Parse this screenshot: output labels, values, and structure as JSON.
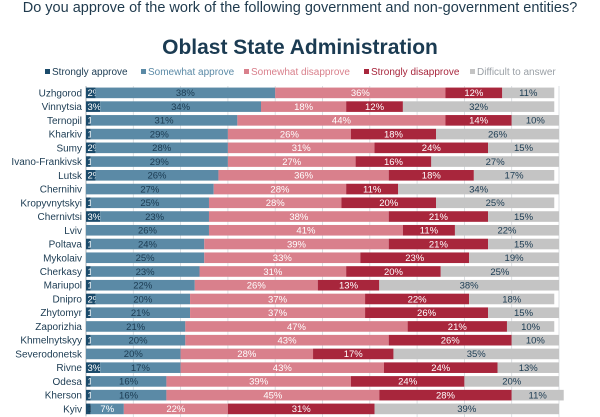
{
  "header": {
    "question": "Do you approve of the work of the following government and non-government entities?",
    "subtitle": "Oblast State Administration"
  },
  "colors": {
    "strongly_approve": "#1b4b6b",
    "somewhat_approve": "#5b8aa6",
    "somewhat_disapprove": "#d9808c",
    "strongly_disapprove": "#a8263c",
    "difficult": "#c4c4c4"
  },
  "chart_data": {
    "type": "bar",
    "orientation": "horizontal",
    "stacked": true,
    "title": "Oblast State Administration",
    "xlim": [
      0,
      100
    ],
    "x_ticks": [
      "0%",
      "10%",
      "20%",
      "30%",
      "40%",
      "50%",
      "60%",
      "70%",
      "80%",
      "90%",
      "100%"
    ],
    "legend_position": "top",
    "categories": [
      "Uzhgorod",
      "Vinnytsia",
      "Ternopil",
      "Kharkiv",
      "Sumy",
      "Ivano-Frankivsk",
      "Lutsk",
      "Chernihiv",
      "Kropyvnytskyi",
      "Chernivtsi",
      "Lviv",
      "Poltava",
      "Mykolaiv",
      "Cherkasy",
      "Mariupol",
      "Dnipro",
      "Zhytomyr",
      "Zaporizhia",
      "Khmelnytskyy",
      "Severodonetsk",
      "Rivne",
      "Odesa",
      "Kherson",
      "Kyiv"
    ],
    "series": [
      {
        "name": "Strongly approve",
        "values": [
          2,
          3,
          1,
          1,
          2,
          1,
          2,
          0,
          1,
          3,
          0,
          1,
          0,
          1,
          1,
          2,
          1,
          0,
          1,
          0,
          3,
          1,
          1,
          1
        ]
      },
      {
        "name": "Somewhat approve",
        "values": [
          38,
          34,
          31,
          29,
          28,
          29,
          26,
          27,
          25,
          23,
          26,
          24,
          25,
          23,
          22,
          20,
          21,
          21,
          20,
          20,
          17,
          16,
          16,
          7
        ]
      },
      {
        "name": "Somewhat disapprove",
        "values": [
          36,
          18,
          44,
          26,
          31,
          27,
          36,
          28,
          28,
          38,
          41,
          39,
          33,
          31,
          26,
          37,
          37,
          47,
          43,
          28,
          43,
          39,
          45,
          22
        ]
      },
      {
        "name": "Strongly disapprove",
        "values": [
          12,
          12,
          14,
          18,
          24,
          16,
          18,
          11,
          20,
          21,
          11,
          21,
          23,
          20,
          13,
          22,
          26,
          21,
          26,
          17,
          24,
          24,
          28,
          31
        ]
      },
      {
        "name": "Difficult to answer",
        "values": [
          11,
          32,
          10,
          26,
          15,
          27,
          17,
          34,
          25,
          15,
          22,
          15,
          19,
          25,
          38,
          18,
          15,
          10,
          10,
          35,
          13,
          20,
          11,
          39
        ]
      }
    ]
  }
}
